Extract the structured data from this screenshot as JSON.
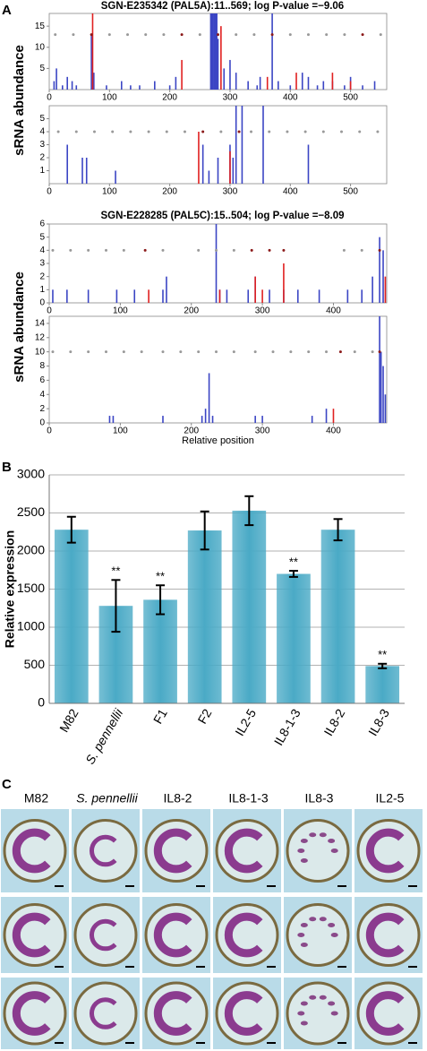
{
  "panel_labels": [
    "A",
    "B",
    "C"
  ],
  "chart_data": [
    {
      "type": "spike",
      "title": "SGN-E235342 (PAL5A):11..569; log P-value =−9.06",
      "ylabel": "sRNA abundance",
      "xlim": [
        0,
        560
      ],
      "xticks": [
        0,
        100,
        200,
        300,
        400,
        500
      ],
      "ylim": [
        0,
        18
      ],
      "yticks": [
        5,
        10,
        15
      ],
      "series": [
        {
          "kind": "spike",
          "color": "#3b45c4",
          "x": [
            8,
            12,
            22,
            30,
            38,
            45,
            70,
            74,
            95,
            120,
            135,
            150,
            175,
            200,
            210,
            268,
            270,
            272,
            274,
            276,
            278,
            280,
            290,
            300,
            310,
            330,
            345,
            350,
            370,
            380,
            400,
            420,
            430,
            445,
            455,
            470,
            490,
            500,
            520,
            540
          ],
          "values": [
            2,
            5,
            1,
            3,
            2,
            1,
            13,
            4,
            1,
            2,
            1,
            1,
            2,
            1,
            3,
            18,
            18,
            18,
            18,
            18,
            18,
            12,
            5,
            7,
            4,
            2,
            1,
            3,
            18,
            2,
            1,
            4,
            3,
            1,
            2,
            2,
            1,
            3,
            1,
            2
          ]
        },
        {
          "kind": "spike",
          "color": "#e02020",
          "x": [
            72,
            220,
            285,
            362,
            410,
            470,
            500
          ],
          "values": [
            18,
            7,
            15,
            3,
            4,
            4,
            2
          ]
        },
        {
          "kind": "dot",
          "color": "#999999",
          "x": [
            10,
            40,
            100,
            130,
            160,
            190,
            250,
            310,
            340,
            400,
            430,
            460,
            490,
            550
          ],
          "values": [
            13,
            13,
            13,
            13,
            13,
            13,
            13,
            13,
            13,
            13,
            13,
            13,
            13,
            13
          ]
        },
        {
          "kind": "dot",
          "color": "#8b1a1a",
          "x": [
            70,
            220,
            280,
            370,
            520
          ],
          "values": [
            13,
            13,
            13,
            13,
            13
          ]
        }
      ]
    },
    {
      "type": "spike",
      "xlim": [
        0,
        560
      ],
      "xticks": [
        0,
        100,
        200,
        300,
        400,
        500
      ],
      "ylim": [
        0,
        6
      ],
      "yticks": [
        1,
        2,
        3,
        4,
        5
      ],
      "series": [
        {
          "kind": "spike",
          "color": "#3b45c4",
          "x": [
            30,
            55,
            62,
            110,
            255,
            265,
            280,
            300,
            305,
            310,
            320,
            355,
            430
          ],
          "values": [
            3,
            2,
            2,
            1,
            3,
            1,
            2,
            3,
            2,
            6,
            6,
            6,
            3
          ]
        },
        {
          "kind": "spike",
          "color": "#e02020",
          "x": [
            248,
            300
          ],
          "values": [
            4,
            2.5
          ]
        },
        {
          "kind": "dot",
          "color": "#999999",
          "x": [
            15,
            45,
            75,
            105,
            135,
            165,
            195,
            225,
            285,
            335,
            365,
            395,
            425,
            455,
            485,
            515,
            545
          ],
          "values": [
            4,
            4,
            4,
            4,
            4,
            4,
            4,
            4,
            4,
            4,
            4,
            4,
            4,
            4,
            4,
            4,
            4
          ]
        },
        {
          "kind": "dot",
          "color": "#8b1a1a",
          "x": [
            255,
            315
          ],
          "values": [
            4,
            4
          ]
        }
      ]
    },
    {
      "type": "spike",
      "title": "SGN-E228285 (PAL5C):15..504; log P-value =−8.09",
      "ylabel": "sRNA abundance",
      "xlim": [
        0,
        475
      ],
      "xticks": [
        0,
        100,
        200,
        300,
        400
      ],
      "ylim": [
        0,
        6
      ],
      "yticks": [
        0,
        1,
        2,
        3,
        4,
        5,
        6
      ],
      "series": [
        {
          "kind": "spike",
          "color": "#3b45c4",
          "x": [
            5,
            25,
            55,
            95,
            120,
            160,
            165,
            235,
            240,
            250,
            280,
            290,
            310,
            330,
            350,
            380,
            420,
            440,
            455,
            465,
            470
          ],
          "values": [
            1,
            1,
            1,
            1,
            1,
            1,
            2,
            6,
            1,
            1,
            1,
            2,
            1,
            1,
            1,
            1,
            1,
            1,
            2,
            5,
            4
          ]
        },
        {
          "kind": "spike",
          "color": "#e02020",
          "x": [
            140,
            240,
            290,
            300,
            330,
            473
          ],
          "values": [
            1,
            1,
            2,
            1,
            3,
            2
          ]
        },
        {
          "kind": "dot",
          "color": "#999999",
          "x": [
            5,
            30,
            55,
            80,
            105,
            160,
            210,
            235,
            260,
            415,
            440
          ],
          "values": [
            4,
            4,
            4,
            4,
            4,
            4,
            4,
            4,
            4,
            4,
            4
          ]
        },
        {
          "kind": "dot",
          "color": "#8b1a1a",
          "x": [
            135,
            285,
            310,
            330,
            465
          ],
          "values": [
            4,
            4,
            4,
            4,
            4
          ]
        }
      ]
    },
    {
      "type": "spike",
      "xlabel": "Relative position",
      "xlim": [
        0,
        475
      ],
      "xticks": [
        0,
        100,
        200,
        300,
        400
      ],
      "ylim": [
        0,
        15
      ],
      "yticks": [
        0,
        2,
        4,
        6,
        8,
        10,
        12,
        14
      ],
      "series": [
        {
          "kind": "spike",
          "color": "#3b45c4",
          "x": [
            85,
            90,
            160,
            215,
            220,
            225,
            230,
            290,
            300,
            370,
            390,
            465,
            467,
            470,
            473
          ],
          "values": [
            1,
            1,
            1,
            1,
            2,
            7,
            1,
            1,
            1,
            1,
            2,
            15,
            10,
            8,
            4
          ]
        },
        {
          "kind": "spike",
          "color": "#e02020",
          "x": [
            400
          ],
          "values": [
            2
          ]
        },
        {
          "kind": "dot",
          "color": "#999999",
          "x": [
            5,
            30,
            55,
            80,
            105,
            130,
            160,
            185,
            210,
            235,
            260,
            290,
            315,
            340,
            365,
            390,
            430,
            455
          ],
          "values": [
            10,
            10,
            10,
            10,
            10,
            10,
            10,
            10,
            10,
            10,
            10,
            10,
            10,
            10,
            10,
            10,
            10,
            10
          ]
        },
        {
          "kind": "dot",
          "color": "#8b1a1a",
          "x": [
            410,
            465
          ],
          "values": [
            10,
            10
          ]
        }
      ]
    },
    {
      "type": "bar",
      "ylabel": "Relative expression",
      "color": "#4aaac6",
      "grid": true,
      "categories": [
        "M82",
        "S. pennellii",
        "F1",
        "F2",
        "IL2-5",
        "IL8-1-3",
        "IL8-2",
        "IL8-3"
      ],
      "values": [
        2280,
        1280,
        1360,
        2270,
        2530,
        1700,
        2280,
        490
      ],
      "errors": [
        170,
        340,
        190,
        250,
        190,
        40,
        140,
        30
      ],
      "annotations": [
        {
          "index": 1,
          "text": "**"
        },
        {
          "index": 2,
          "text": "**"
        },
        {
          "index": 5,
          "text": "**"
        },
        {
          "index": 7,
          "text": "**"
        }
      ],
      "ylim": [
        0,
        3000
      ],
      "yticks": [
        0,
        500,
        1000,
        1500,
        2000,
        2500,
        3000
      ]
    }
  ],
  "panel_c": {
    "columns": [
      "M82",
      "S. pennellii",
      "IL8-2",
      "IL8-1-3",
      "IL8-3",
      "IL2-5"
    ]
  }
}
